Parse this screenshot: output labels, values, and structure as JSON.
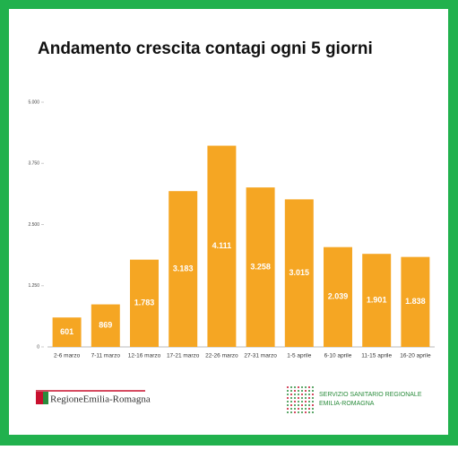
{
  "chart_data": {
    "type": "bar",
    "title": "Andamento crescita contagi ogni 5 giorni",
    "categories": [
      "2-6 marzo",
      "7-11 marzo",
      "12-16 marzo",
      "17-21 marzo",
      "22-26 marzo",
      "27-31 marzo",
      "1-5 aprile",
      "6-10 aprile",
      "11-15 aprile",
      "16-20 aprile"
    ],
    "values": [
      601,
      869,
      1783,
      3183,
      4111,
      3258,
      3015,
      2039,
      1901,
      1838
    ],
    "value_labels": [
      "601",
      "869",
      "1.783",
      "3.183",
      "4.111",
      "3.258",
      "3.015",
      "2.039",
      "1.901",
      "1.838"
    ],
    "color": "#f5a623",
    "ylim": [
      0,
      5000
    ],
    "yticks": [
      0,
      {
        "value": 1250,
        "label": "1.250"
      },
      {
        "value": 2500,
        "label": "2.500"
      },
      {
        "value": 3750,
        "label": "3.750"
      },
      {
        "value": 5000,
        "label": "5.000"
      }
    ],
    "grid": false
  },
  "footer": {
    "left": "RegioneEmilia-Romagna",
    "right_line1": "SERVIZIO SANITARIO REGIONALE",
    "right_line2": "EMILIA-ROMAGNA"
  }
}
